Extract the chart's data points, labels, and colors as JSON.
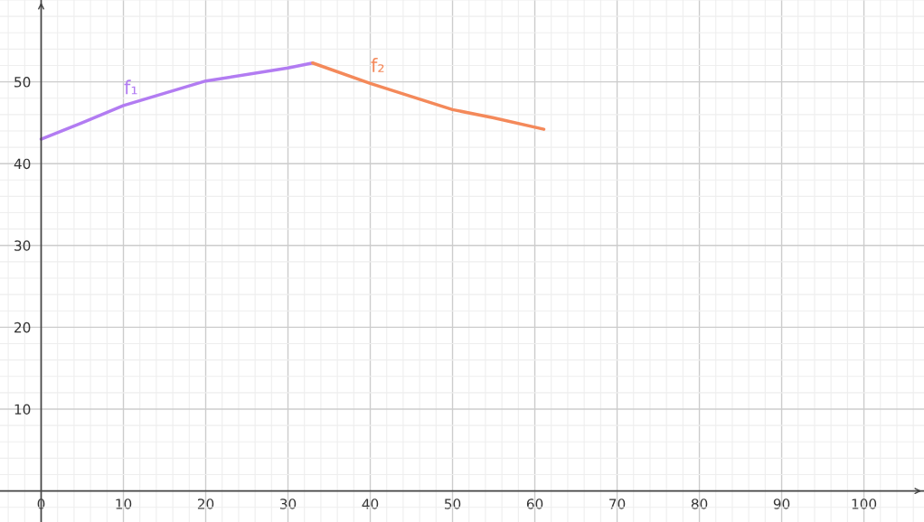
{
  "chart_data": {
    "type": "line",
    "xlim": [
      -5,
      107.3
    ],
    "ylim": [
      -3.8,
      60
    ],
    "xticks": [
      0,
      10,
      20,
      30,
      40,
      50,
      60,
      70,
      80,
      90,
      100
    ],
    "yticks": [
      10,
      20,
      30,
      40,
      50
    ],
    "grid": true,
    "marker": "none",
    "line_style": "solid",
    "series": [
      {
        "name": "f₁",
        "color": "#b27cf2",
        "x": [
          0,
          5,
          10,
          20,
          30,
          33
        ],
        "values": [
          43.0,
          45.0,
          47.1,
          50.1,
          51.7,
          52.3
        ]
      },
      {
        "name": "f₂",
        "color": "#f4895a",
        "x": [
          33,
          40,
          50,
          55,
          61.1
        ],
        "values": [
          52.3,
          49.8,
          46.6,
          45.6,
          44.2
        ]
      }
    ]
  }
}
